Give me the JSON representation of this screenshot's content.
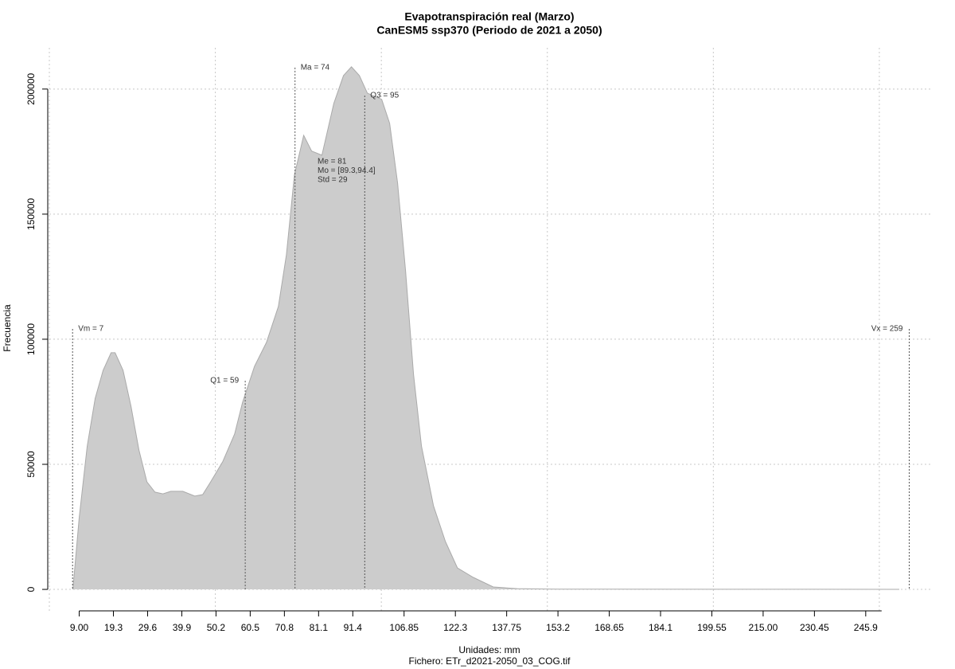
{
  "chart_data": {
    "type": "area",
    "title": "Evapotranspiración real (Marzo)",
    "subtitle": "CanESM5 ssp370 (Periodo de 2021 a 2050)",
    "x_label": "Unidades: mm",
    "caption": "Fichero: ETr_d2021-2050_03_COG.tif",
    "y_label": "Frecuencia",
    "color": "#cccccc",
    "x": [
      7.1,
      9,
      11.4,
      13.8,
      16.2,
      18.6,
      19.8,
      22.2,
      24.6,
      27.0,
      29.4,
      31.8,
      34.2,
      36.6,
      40.2,
      43.8,
      46.2,
      48.6,
      52.2,
      55.8,
      58.2,
      61.8,
      65.4,
      69.0,
      71.4,
      73.8,
      76.6,
      79.0,
      82.1,
      85.7,
      88.6,
      91.0,
      93.4,
      95.8,
      100.1,
      102.5,
      104.9,
      107.3,
      109.7,
      112.1,
      115.7,
      119.3,
      122.9,
      127.7,
      133.7,
      140.9,
      152.9,
      256
    ],
    "values": [
      0,
      28660,
      57300,
      76400,
      87600,
      94600,
      94600,
      87600,
      73200,
      55700,
      43000,
      38900,
      38200,
      39200,
      39200,
      37300,
      37900,
      43000,
      51000,
      62100,
      74800,
      89200,
      98700,
      113100,
      133800,
      165600,
      181500,
      175200,
      173600,
      194300,
      205400,
      208900,
      205400,
      198400,
      195900,
      186300,
      162400,
      127400,
      86000,
      57300,
      33400,
      19100,
      8600,
      4800,
      955,
      300,
      100,
      0
    ],
    "xlim": [
      0,
      265.6
    ],
    "ylim": [
      -8900,
      216500
    ],
    "xticks": [
      {
        "value": 9,
        "label": "9.00"
      },
      19.3,
      29.6,
      39.9,
      50.2,
      60.5,
      70.8,
      81.1,
      91.4,
      106.85,
      122.3,
      137.75,
      153.2,
      168.65,
      184.1,
      199.55,
      {
        "value": 215,
        "label": "215.00"
      },
      230.45,
      245.9
    ],
    "yticks": [
      0,
      50000,
      100000,
      150000,
      200000
    ],
    "xgrid": [
      0,
      50,
      100,
      150,
      200,
      250
    ],
    "grid": true,
    "markers": [
      {
        "label": "Vm = 7",
        "x": 7,
        "y": 104100
      },
      {
        "label": "Q1 = 59",
        "x": 59,
        "y": 83400
      },
      {
        "label": "Ma = 74",
        "x": 74,
        "y": 208600
      },
      {
        "label": "Q3 = 95",
        "x": 95,
        "y": 197400
      },
      {
        "label": "Vx = 259",
        "x": 259,
        "y": 104100
      }
    ],
    "notes": [
      "Me = 81",
      "Mo = [89.3,94.4]",
      "Std = 29"
    ]
  }
}
